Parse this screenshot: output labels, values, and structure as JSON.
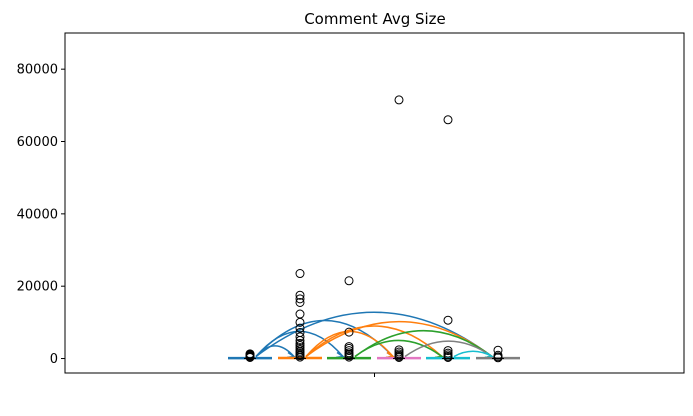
{
  "chart_data": {
    "type": "box",
    "title": "Comment Avg Size",
    "xlabel": "",
    "ylabel": "",
    "ylim": [
      -4000,
      90000
    ],
    "yticks": [
      0,
      20000,
      40000,
      60000,
      80000
    ],
    "ytick_labels": [
      "0",
      "20000",
      "40000",
      "60000",
      "80000"
    ],
    "xticks_count": 1,
    "grid": false,
    "boxes": [
      {
        "color": "#1f77b4",
        "median": 100,
        "outliers": [
          300,
          500,
          700,
          900,
          1100,
          1300
        ]
      },
      {
        "color": "#ff7f0e",
        "median": 150,
        "outliers": [
          400,
          800,
          1200,
          1600,
          2000,
          2500,
          3000,
          3600,
          4200,
          5000,
          6000,
          7200,
          8400,
          10000,
          12300,
          15500,
          16500,
          17500,
          23500
        ]
      },
      {
        "color": "#2ca02c",
        "median": 120,
        "outliers": [
          400,
          800,
          1200,
          1600,
          2200,
          2800,
          3300,
          7300,
          21500
        ]
      },
      {
        "color": "#e377c2",
        "median": 100,
        "outliers": [
          300,
          600,
          900,
          1300,
          1800,
          2400,
          71500
        ]
      },
      {
        "color": "#17becf",
        "median": 120,
        "outliers": [
          300,
          600,
          1000,
          1500,
          2200,
          10600,
          66000
        ]
      },
      {
        "color": "#7f7f7f",
        "median": 100,
        "outliers": [
          200,
          500,
          900,
          2300
        ]
      }
    ],
    "arcs": [
      {
        "from": 0,
        "to": 1,
        "peak": 3500,
        "color": "#1f77b4"
      },
      {
        "from": 0,
        "to": 2,
        "peak": 7500,
        "color": "#1f77b4"
      },
      {
        "from": 0,
        "to": 3,
        "peak": 10500,
        "color": "#1f77b4"
      },
      {
        "from": 0,
        "to": 5,
        "peak": 12800,
        "color": "#1f77b4"
      },
      {
        "from": 1,
        "to": 3,
        "peak": 7500,
        "color": "#ff7f0e"
      },
      {
        "from": 1,
        "to": 4,
        "peak": 9000,
        "color": "#ff7f0e"
      },
      {
        "from": 1,
        "to": 5,
        "peak": 10200,
        "color": "#ff7f0e"
      },
      {
        "from": 2,
        "to": 4,
        "peak": 5000,
        "color": "#2ca02c"
      },
      {
        "from": 2,
        "to": 5,
        "peak": 7700,
        "color": "#2ca02c"
      },
      {
        "from": 3,
        "to": 5,
        "peak": 4800,
        "color": "#7f7f7f"
      },
      {
        "from": 4,
        "to": 5,
        "peak": 2000,
        "color": "#17becf"
      }
    ]
  }
}
